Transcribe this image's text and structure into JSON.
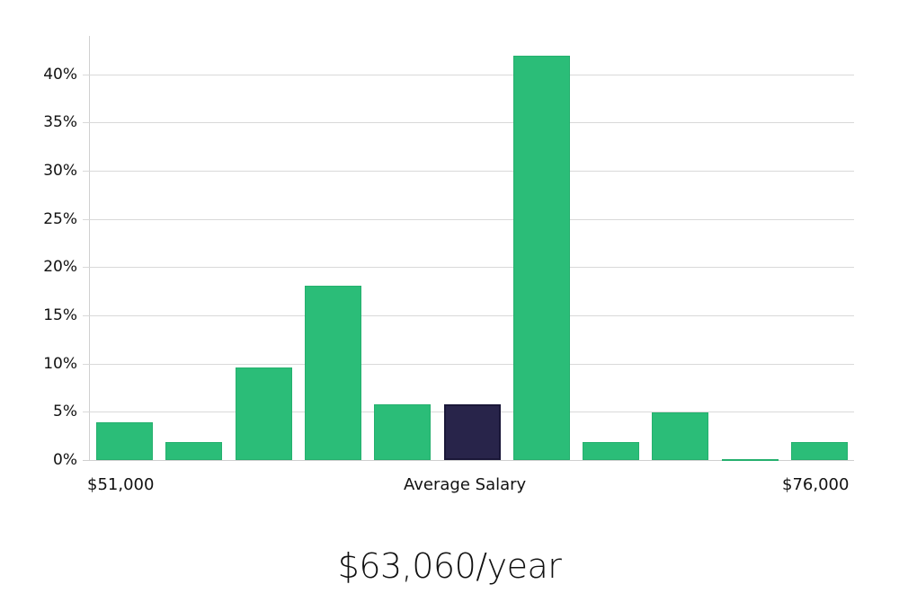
{
  "chart_data": {
    "type": "bar",
    "title": "",
    "xlabel": "Average Salary",
    "ylabel": "",
    "ylim": [
      0,
      44
    ],
    "y_ticks": [
      "0%",
      "5%",
      "10%",
      "15%",
      "20%",
      "25%",
      "30%",
      "35%",
      "40%"
    ],
    "x_range_labels": {
      "min": "$51,000",
      "max": "$76,000"
    },
    "grid": true,
    "categories": [
      "bin1",
      "bin2",
      "bin3",
      "bin4",
      "bin5",
      "bin6",
      "bin7",
      "bin8",
      "bin9",
      "bin10",
      "bin11"
    ],
    "values": [
      3.9,
      1.9,
      9.6,
      18.1,
      5.8,
      5.8,
      41.9,
      1.9,
      4.9,
      0.1,
      1.9
    ],
    "highlight_index": 5,
    "colors": {
      "bar": "#2bbd78",
      "highlight": "#28244a",
      "grid": "#d9d9d9"
    }
  },
  "labels": {
    "min_salary": "$51,000",
    "axis_title": "Average Salary",
    "max_salary": "$76,000",
    "headline": "$63,060/year"
  }
}
